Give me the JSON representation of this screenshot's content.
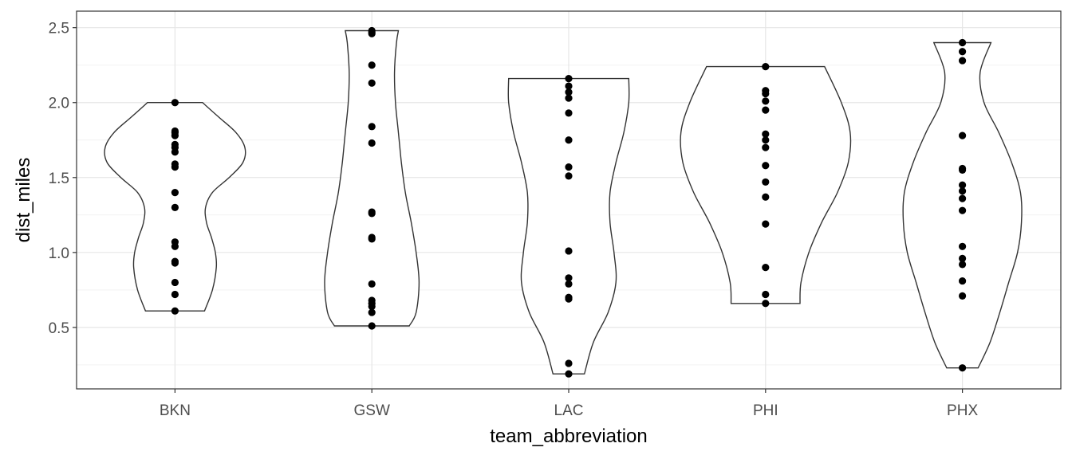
{
  "chart_data": {
    "type": "violin",
    "xlabel": "team_abbreviation",
    "ylabel": "dist_miles",
    "ylim": [
      0.09,
      2.61
    ],
    "yticks": [
      0.5,
      1.0,
      1.5,
      2.0,
      2.5
    ],
    "ytick_labels": [
      "0.5",
      "1.0",
      "1.5",
      "2.0",
      "2.5"
    ],
    "grid": true,
    "legend": "none",
    "categories": [
      "BKN",
      "GSW",
      "LAC",
      "PHI",
      "PHX"
    ],
    "series": [
      {
        "category": "BKN",
        "points": [
          2.0,
          1.81,
          1.8,
          1.78,
          1.72,
          1.7,
          1.67,
          1.59,
          1.57,
          1.4,
          1.3,
          1.07,
          1.04,
          0.94,
          0.93,
          0.8,
          0.72,
          0.61
        ],
        "density": [
          [
            0.61,
            0.3
          ],
          [
            0.75,
            0.38
          ],
          [
            0.9,
            0.42
          ],
          [
            1.0,
            0.41
          ],
          [
            1.1,
            0.37
          ],
          [
            1.2,
            0.32
          ],
          [
            1.3,
            0.31
          ],
          [
            1.4,
            0.38
          ],
          [
            1.5,
            0.55
          ],
          [
            1.6,
            0.69
          ],
          [
            1.7,
            0.71
          ],
          [
            1.8,
            0.62
          ],
          [
            1.9,
            0.45
          ],
          [
            2.0,
            0.28
          ]
        ]
      },
      {
        "category": "GSW",
        "points": [
          2.48,
          2.47,
          2.46,
          2.25,
          2.13,
          1.84,
          1.73,
          1.27,
          1.26,
          1.1,
          1.09,
          0.79,
          0.68,
          0.66,
          0.64,
          0.6,
          0.51
        ],
        "density": [
          [
            0.51,
            0.38
          ],
          [
            0.6,
            0.45
          ],
          [
            0.8,
            0.48
          ],
          [
            1.0,
            0.45
          ],
          [
            1.2,
            0.4
          ],
          [
            1.4,
            0.34
          ],
          [
            1.6,
            0.3
          ],
          [
            1.8,
            0.27
          ],
          [
            2.0,
            0.24
          ],
          [
            2.2,
            0.23
          ],
          [
            2.4,
            0.25
          ],
          [
            2.48,
            0.27
          ]
        ]
      },
      {
        "category": "LAC",
        "points": [
          2.16,
          2.11,
          2.07,
          2.03,
          1.93,
          1.75,
          1.57,
          1.51,
          1.01,
          0.83,
          0.79,
          0.7,
          0.69,
          0.26,
          0.19
        ],
        "density": [
          [
            0.19,
            0.16
          ],
          [
            0.4,
            0.25
          ],
          [
            0.6,
            0.4
          ],
          [
            0.8,
            0.48
          ],
          [
            1.0,
            0.46
          ],
          [
            1.2,
            0.42
          ],
          [
            1.4,
            0.42
          ],
          [
            1.6,
            0.48
          ],
          [
            1.8,
            0.56
          ],
          [
            2.0,
            0.61
          ],
          [
            2.16,
            0.61
          ]
        ]
      },
      {
        "category": "PHI",
        "points": [
          2.24,
          2.08,
          2.06,
          2.01,
          1.95,
          1.79,
          1.75,
          1.7,
          1.58,
          1.47,
          1.37,
          1.19,
          0.9,
          0.72,
          0.66
        ],
        "density": [
          [
            0.66,
            0.35
          ],
          [
            0.8,
            0.36
          ],
          [
            1.0,
            0.44
          ],
          [
            1.2,
            0.57
          ],
          [
            1.4,
            0.73
          ],
          [
            1.6,
            0.84
          ],
          [
            1.8,
            0.86
          ],
          [
            2.0,
            0.77
          ],
          [
            2.24,
            0.6
          ]
        ]
      },
      {
        "category": "PHX",
        "points": [
          2.4,
          2.34,
          2.28,
          1.78,
          1.56,
          1.55,
          1.45,
          1.41,
          1.36,
          1.28,
          1.04,
          0.96,
          0.92,
          0.81,
          0.71,
          0.23
        ],
        "density": [
          [
            0.23,
            0.16
          ],
          [
            0.4,
            0.28
          ],
          [
            0.6,
            0.38
          ],
          [
            0.8,
            0.47
          ],
          [
            1.0,
            0.56
          ],
          [
            1.2,
            0.6
          ],
          [
            1.4,
            0.59
          ],
          [
            1.6,
            0.5
          ],
          [
            1.8,
            0.37
          ],
          [
            2.0,
            0.22
          ],
          [
            2.2,
            0.18
          ],
          [
            2.4,
            0.29
          ]
        ]
      }
    ]
  }
}
